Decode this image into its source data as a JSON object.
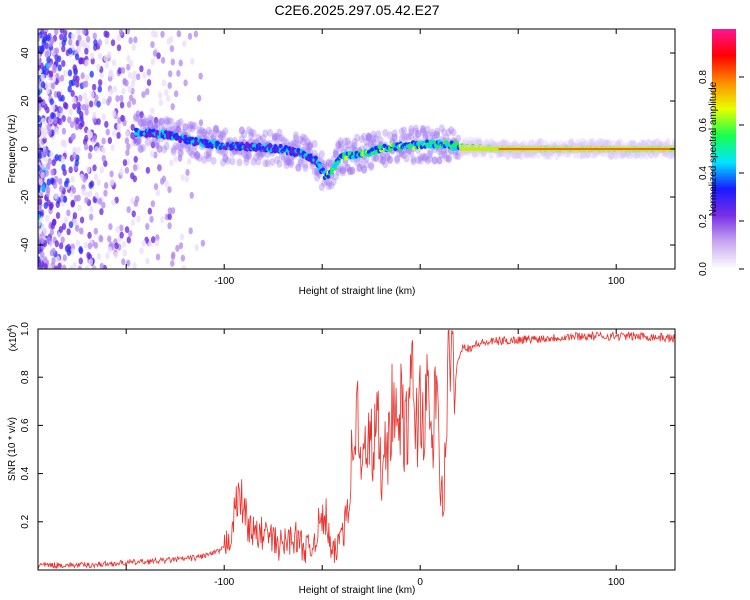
{
  "title": "C2E6.2025.297.05.42.E27",
  "chart_data": [
    {
      "type": "heatmap",
      "name": "spectrogram",
      "xlabel": "Height of straight line (km)",
      "ylabel": "Frequency (Hz)",
      "xlim": [
        -195,
        130
      ],
      "ylim": [
        -50,
        50
      ],
      "xticks": [
        -150,
        -100,
        -50,
        0,
        50,
        100
      ],
      "xtick_labels": [
        "",
        "-100",
        "",
        "",
        "",
        "100"
      ],
      "yticks": [
        -40,
        -20,
        0,
        20,
        40
      ],
      "ytick_labels": [
        "-40",
        "-20",
        "0",
        "20",
        "40"
      ],
      "colorbar": {
        "label": "Normalized spectral amplitude",
        "range": [
          0,
          1
        ],
        "ticks": [
          0.0,
          0.2,
          0.4,
          0.6,
          0.8
        ],
        "tick_labels": [
          "0.0",
          "0.2",
          "0.4",
          "0.6",
          "0.8"
        ],
        "colors": [
          "#ffffff",
          "#c9a8f0",
          "#7a30e8",
          "#1a1aff",
          "#00e5ff",
          "#18ff50",
          "#e8ff00",
          "#ff8c00",
          "#ff0000",
          "#ff1493"
        ]
      },
      "ridge": {
        "x": [
          -145,
          -130,
          -115,
          -100,
          -85,
          -70,
          -60,
          -53,
          -48,
          -40,
          -30,
          -20,
          -10,
          0,
          10,
          20,
          40,
          60,
          80,
          100,
          130
        ],
        "freq": [
          7,
          6,
          3,
          1,
          1,
          0,
          -2,
          -5,
          -12,
          -3,
          -2,
          0,
          1,
          2,
          2,
          1,
          0,
          0,
          0,
          0,
          0
        ]
      }
    },
    {
      "type": "line",
      "name": "snr",
      "xlabel": "Height of straight line (km)",
      "ylabel": "SNR (10 * v/v)",
      "multiplier_label": "(x10",
      "multiplier_exp": "4",
      "multiplier_close": ")",
      "color": "#e8322d",
      "xlim": [
        -195,
        130
      ],
      "ylim": [
        0,
        1.0
      ],
      "xticks": [
        -150,
        -100,
        -50,
        0,
        50,
        100
      ],
      "xtick_labels": [
        "",
        "-100",
        "",
        "0",
        "",
        "100"
      ],
      "yticks": [
        0.2,
        0.4,
        0.6,
        0.8,
        1.0
      ],
      "ytick_labels": [
        "0.2",
        "0.4",
        "0.6",
        "0.8",
        "1.0"
      ],
      "series_x": [
        -195,
        -170,
        -150,
        -130,
        -115,
        -105,
        -100,
        -97,
        -94,
        -92,
        -90,
        -88,
        -85,
        -82,
        -80,
        -76,
        -72,
        -68,
        -64,
        -60,
        -56,
        -52,
        -48,
        -45,
        -42,
        -40,
        -38,
        -36,
        -34,
        -32,
        -30,
        -28,
        -26,
        -24,
        -22,
        -20,
        -18,
        -16,
        -14,
        -12,
        -10,
        -8,
        -6,
        -4,
        -2,
        0,
        2,
        4,
        6,
        8,
        10,
        11,
        12,
        13,
        14,
        16,
        18,
        20,
        22,
        25,
        30,
        40,
        60,
        80,
        100,
        115,
        130
      ],
      "series_y": [
        0.02,
        0.02,
        0.03,
        0.04,
        0.05,
        0.07,
        0.09,
        0.15,
        0.26,
        0.32,
        0.25,
        0.2,
        0.15,
        0.14,
        0.16,
        0.13,
        0.1,
        0.12,
        0.14,
        0.1,
        0.08,
        0.18,
        0.22,
        0.05,
        0.1,
        0.18,
        0.24,
        0.35,
        0.55,
        0.65,
        0.38,
        0.48,
        0.6,
        0.45,
        0.66,
        0.4,
        0.6,
        0.5,
        0.72,
        0.55,
        0.68,
        0.55,
        0.62,
        0.8,
        0.58,
        0.7,
        0.62,
        0.72,
        0.5,
        0.75,
        0.42,
        0.3,
        0.22,
        0.55,
        0.88,
        0.85,
        0.8,
        0.9,
        0.93,
        0.92,
        0.94,
        0.95,
        0.96,
        0.97,
        0.97,
        0.97,
        0.96
      ]
    }
  ]
}
